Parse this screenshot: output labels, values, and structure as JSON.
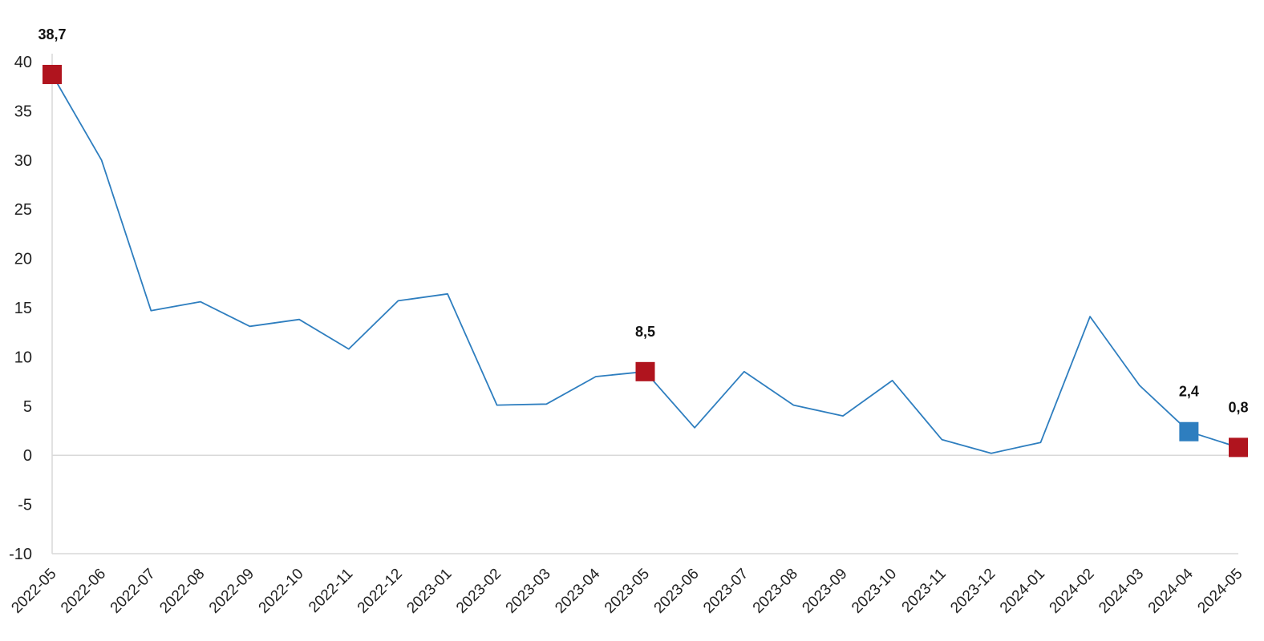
{
  "chart_data": {
    "type": "line",
    "title": "",
    "xlabel": "",
    "ylabel": "",
    "ylim": [
      -10,
      40
    ],
    "yticks": [
      -10,
      -5,
      0,
      5,
      10,
      15,
      20,
      25,
      30,
      35,
      40
    ],
    "ytick_labels": [
      "-10",
      "-5",
      "0",
      "5",
      "10",
      "15",
      "20",
      "25",
      "30",
      "35",
      "40"
    ],
    "grid": false,
    "categories": [
      "2022-05",
      "2022-06",
      "2022-07",
      "2022-08",
      "2022-09",
      "2022-10",
      "2022-11",
      "2022-12",
      "2023-01",
      "2023-02",
      "2023-03",
      "2023-04",
      "2023-05",
      "2023-06",
      "2023-07",
      "2023-08",
      "2023-09",
      "2023-10",
      "2023-11",
      "2023-12",
      "2024-01",
      "2024-02",
      "2024-03",
      "2024-04",
      "2024-05"
    ],
    "series": [
      {
        "values": [
          38.7,
          30.0,
          14.7,
          15.6,
          13.1,
          13.8,
          10.8,
          15.7,
          16.4,
          5.1,
          5.2,
          8.0,
          8.5,
          2.8,
          8.5,
          5.1,
          4.0,
          7.6,
          1.6,
          0.2,
          1.3,
          14.1,
          7.1,
          2.4,
          0.8
        ],
        "color": "#2E7EBF"
      }
    ],
    "highlights": [
      {
        "index": 0,
        "label": "38,7",
        "color": "#B0141E"
      },
      {
        "index": 12,
        "label": "8,5",
        "color": "#B0141E"
      },
      {
        "index": 23,
        "label": "2,4",
        "color": "#2E7EBF"
      },
      {
        "index": 24,
        "label": "0,8",
        "color": "#B0141E"
      }
    ]
  }
}
